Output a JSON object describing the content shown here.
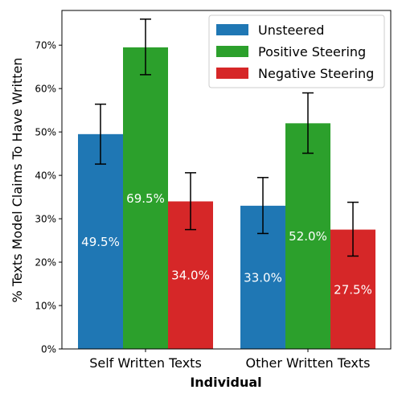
{
  "chart_data": {
    "type": "bar",
    "title": "",
    "xlabel": "Individual",
    "ylabel": "% Texts Model Claims To Have Written",
    "ylim": [
      0,
      78
    ],
    "yticks": [
      "0%",
      "10%",
      "20%",
      "30%",
      "40%",
      "50%",
      "60%",
      "70%"
    ],
    "categories": [
      "Self Written Texts",
      "Other Written Texts"
    ],
    "series": [
      {
        "name": "Unsteered",
        "color": "#1f77b4",
        "values": [
          49.5,
          33.0
        ],
        "err_low": [
          42.6,
          26.6
        ],
        "err_high": [
          56.4,
          39.5
        ],
        "labels": [
          "49.5%",
          "33.0%"
        ]
      },
      {
        "name": "Positive Steering",
        "color": "#2ca02c",
        "values": [
          69.5,
          52.0
        ],
        "err_low": [
          63.2,
          45.1
        ],
        "err_high": [
          76.0,
          59.0
        ],
        "labels": [
          "69.5%",
          "52.0%"
        ]
      },
      {
        "name": "Negative Steering",
        "color": "#d62728",
        "values": [
          34.0,
          27.5
        ],
        "err_low": [
          27.5,
          21.4
        ],
        "err_high": [
          40.6,
          33.8
        ],
        "labels": [
          "34.0%",
          "27.5%"
        ]
      }
    ],
    "grid": false,
    "legend_position": "top-right"
  }
}
